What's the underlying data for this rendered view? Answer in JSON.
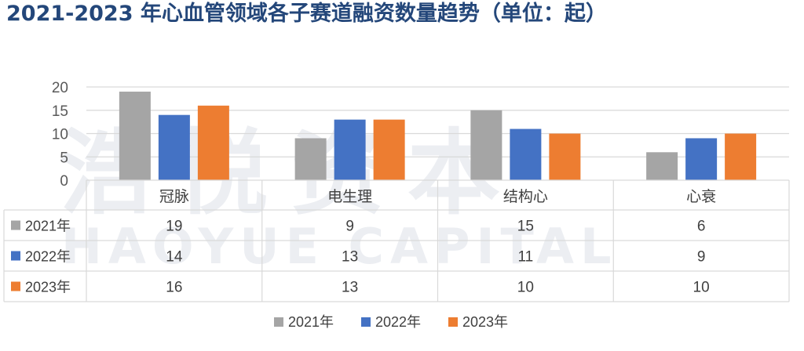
{
  "title": "2021-2023 年心血管领域各子赛道融资数量趋势（单位：起）",
  "watermark": {
    "cn": "浩悦资本",
    "en": "HAOYUE CAPITAL"
  },
  "chart_data": {
    "type": "bar",
    "categories": [
      "冠脉",
      "电生理",
      "结构心",
      "心衰"
    ],
    "series": [
      {
        "name": "2021年",
        "values": [
          19,
          9,
          15,
          6
        ],
        "color": "#a5a5a5"
      },
      {
        "name": "2022年",
        "values": [
          14,
          13,
          11,
          9
        ],
        "color": "#4472c4"
      },
      {
        "name": "2023年",
        "values": [
          16,
          13,
          10,
          10
        ],
        "color": "#ed7d31"
      }
    ],
    "y_ticks": [
      0,
      5,
      10,
      15,
      20
    ],
    "ylim": [
      0,
      20
    ],
    "grid": true,
    "legend": "bottom",
    "data_table": true
  }
}
